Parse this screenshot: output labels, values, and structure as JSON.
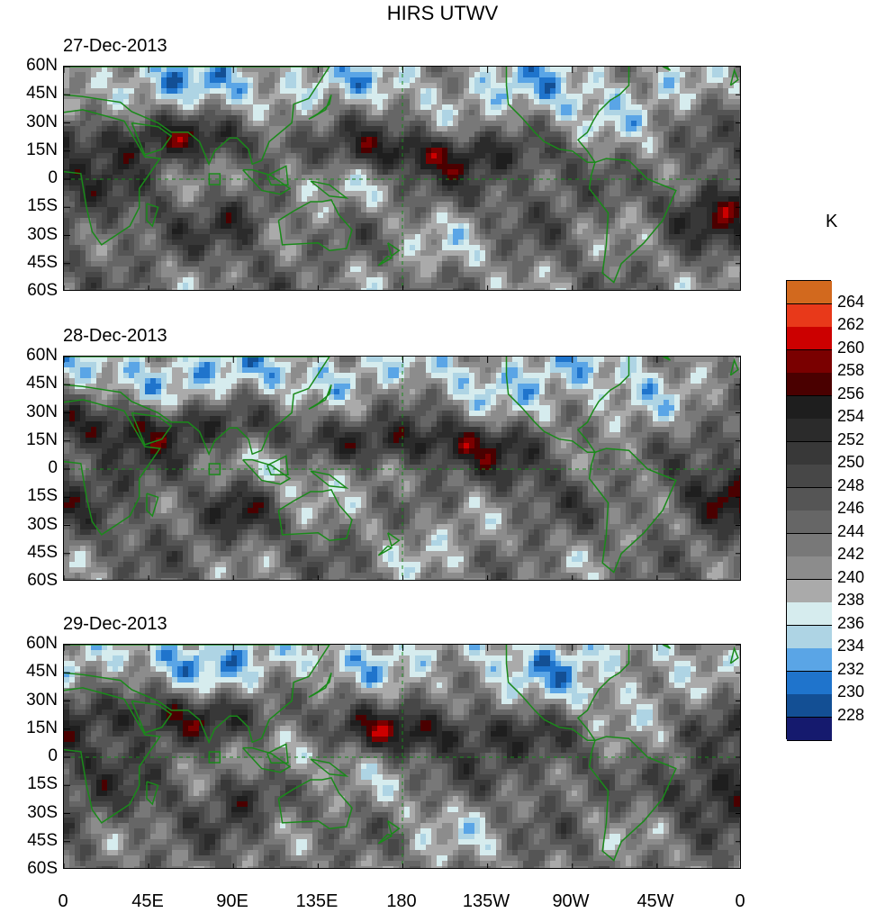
{
  "title": "HIRS UTWV",
  "panels": [
    {
      "date": "27-Dec-2013"
    },
    {
      "date": "28-Dec-2013"
    },
    {
      "date": "29-Dec-2013"
    }
  ],
  "y_ticks": [
    "60N",
    "45N",
    "30N",
    "15N",
    "0",
    "15S",
    "30S",
    "45S",
    "60S"
  ],
  "x_ticks": [
    "0",
    "45E",
    "90E",
    "135E",
    "180",
    "135W",
    "90W",
    "45W",
    "0"
  ],
  "legend": {
    "unit": "K",
    "labels": [
      "264",
      "262",
      "260",
      "258",
      "256",
      "254",
      "252",
      "250",
      "248",
      "246",
      "244",
      "242",
      "240",
      "238",
      "236",
      "234",
      "232",
      "230",
      "228"
    ],
    "colors": [
      "#d2691e",
      "#e8391a",
      "#cc0000",
      "#7a0000",
      "#4a0000",
      "#1e1e1e",
      "#2b2b2b",
      "#383838",
      "#474747",
      "#555555",
      "#666666",
      "#787878",
      "#8c8c8c",
      "#aaaaaa",
      "#d6ecee",
      "#aed4e4",
      "#5aa5e6",
      "#1f74cc",
      "#134f94",
      "#151a6e"
    ]
  },
  "colors": {
    "coast": "#1a8a1a"
  }
}
